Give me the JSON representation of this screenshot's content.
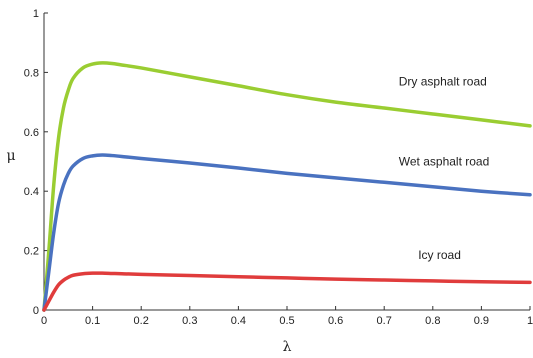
{
  "chart_data": {
    "type": "line",
    "xlabel": "λ",
    "ylabel": "μ",
    "xlim": [
      0,
      1
    ],
    "ylim": [
      0,
      1
    ],
    "xticks": [
      "0",
      "0.1",
      "0.2",
      "0.3",
      "0.4",
      "0.5",
      "0.6",
      "0.7",
      "0.8",
      "0.9",
      "1"
    ],
    "yticks": [
      "0",
      "0.2",
      "0.4",
      "0.6",
      "0.8",
      "1"
    ],
    "grid": false,
    "series": [
      {
        "color": "#9acd32",
        "x": [
          0,
          0.01,
          0.02,
          0.03,
          0.04,
          0.05,
          0.06,
          0.08,
          0.1,
          0.12,
          0.14,
          0.16,
          0.2,
          0.3,
          0.4,
          0.5,
          0.6,
          0.7,
          0.8,
          0.9,
          1.0
        ],
        "y": [
          0,
          0.2,
          0.42,
          0.58,
          0.68,
          0.74,
          0.78,
          0.815,
          0.828,
          0.832,
          0.83,
          0.825,
          0.815,
          0.785,
          0.755,
          0.725,
          0.7,
          0.68,
          0.66,
          0.64,
          0.62
        ]
      },
      {
        "color": "#4a72c0",
        "x": [
          0,
          0.01,
          0.02,
          0.03,
          0.04,
          0.05,
          0.06,
          0.08,
          0.1,
          0.12,
          0.14,
          0.16,
          0.2,
          0.3,
          0.4,
          0.5,
          0.6,
          0.7,
          0.8,
          0.9,
          1.0
        ],
        "y": [
          0,
          0.13,
          0.26,
          0.36,
          0.42,
          0.46,
          0.485,
          0.51,
          0.519,
          0.522,
          0.52,
          0.517,
          0.51,
          0.495,
          0.478,
          0.46,
          0.445,
          0.43,
          0.415,
          0.4,
          0.388
        ]
      },
      {
        "color": "#e03c3c",
        "x": [
          0,
          0.01,
          0.02,
          0.03,
          0.04,
          0.05,
          0.06,
          0.08,
          0.1,
          0.12,
          0.14,
          0.16,
          0.2,
          0.3,
          0.4,
          0.5,
          0.6,
          0.7,
          0.8,
          0.9,
          1.0
        ],
        "y": [
          0,
          0.03,
          0.06,
          0.085,
          0.1,
          0.11,
          0.117,
          0.122,
          0.124,
          0.124,
          0.123,
          0.122,
          0.12,
          0.116,
          0.112,
          0.108,
          0.104,
          0.101,
          0.098,
          0.095,
          0.093
        ]
      }
    ],
    "annotations": [
      {
        "text": "Dry asphalt road",
        "x": 0.73,
        "y": 0.77
      },
      {
        "text": "Wet asphalt road",
        "x": 0.73,
        "y": 0.5
      },
      {
        "text": "Icy road",
        "x": 0.77,
        "y": 0.185
      }
    ]
  }
}
